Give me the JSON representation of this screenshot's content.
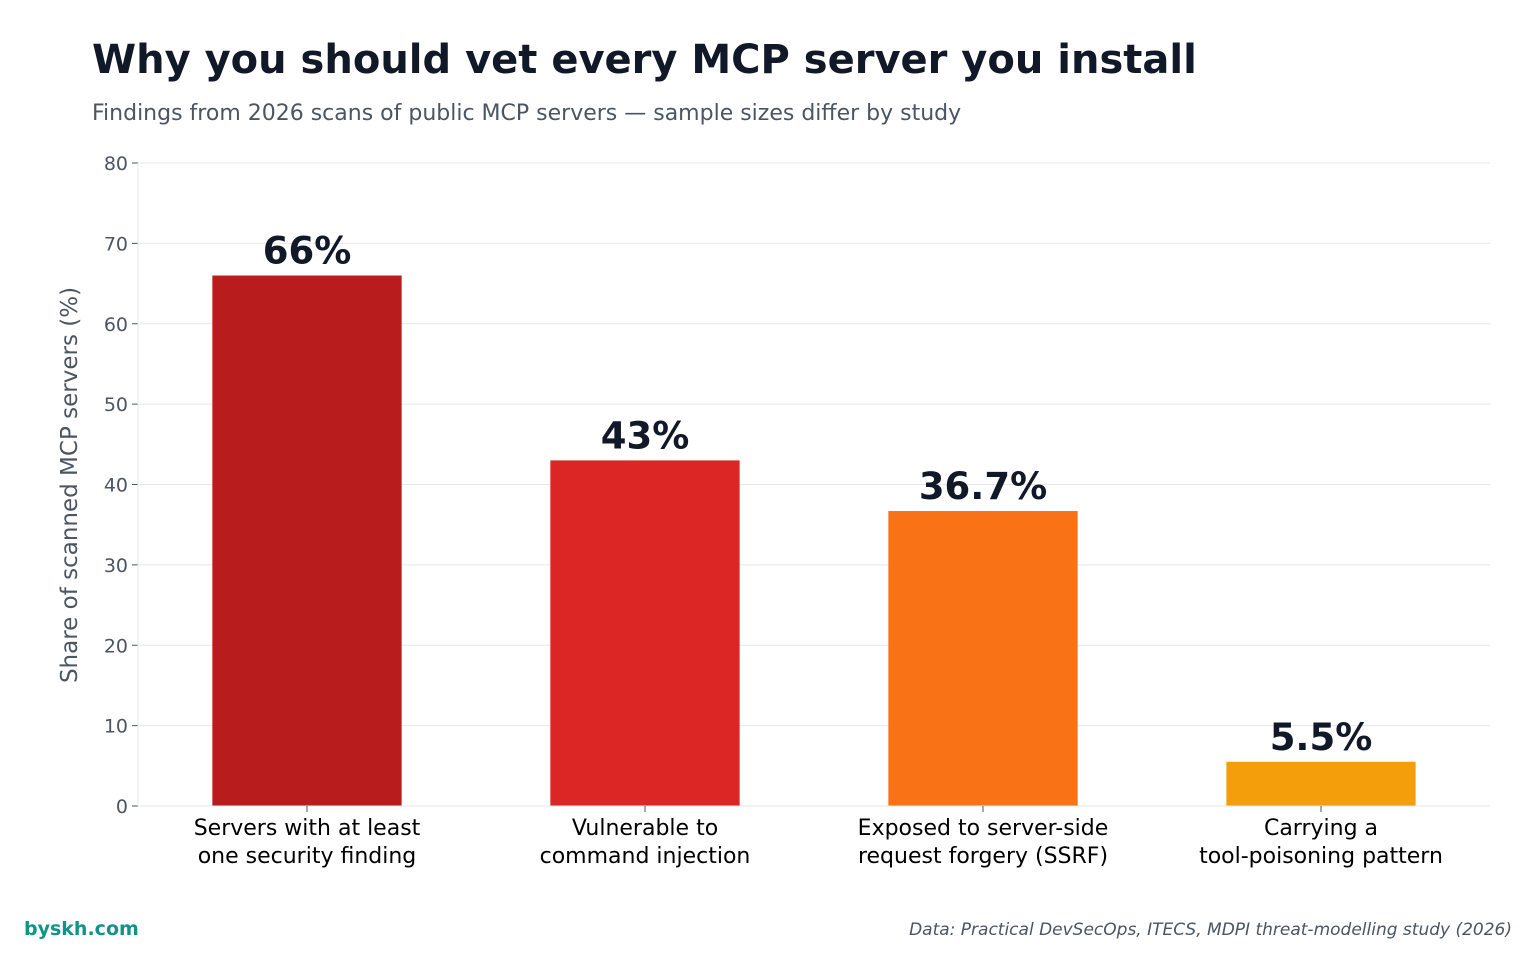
{
  "chart_data": {
    "type": "bar",
    "title": "Why you should vet every MCP server you install",
    "subtitle": "Findings from 2026 scans of public MCP servers — sample sizes differ by study",
    "ylabel": "Share of scanned MCP servers (%)",
    "xlabel": "",
    "ylim": [
      0,
      80
    ],
    "yticks": [
      0,
      10,
      20,
      30,
      40,
      50,
      60,
      70,
      80
    ],
    "grid": true,
    "categories": [
      [
        "Servers with at least",
        "one security finding"
      ],
      [
        "Vulnerable to",
        "command injection"
      ],
      [
        "Exposed to server-side",
        "request forgery (SSRF)"
      ],
      [
        "Carrying a",
        "tool-poisoning pattern"
      ]
    ],
    "values": [
      66,
      43,
      36.7,
      5.5
    ],
    "value_labels": [
      "66%",
      "43%",
      "36.7%",
      "5.5%"
    ],
    "bar_colors": [
      "#b91c1c",
      "#dc2626",
      "#f97316",
      "#f59e0b"
    ]
  },
  "footer": {
    "brand": "byskh.com",
    "brand_color": "#0f9488",
    "source": "Data: Practical DevSecOps, ITECS, MDPI threat-modelling study (2026)"
  }
}
